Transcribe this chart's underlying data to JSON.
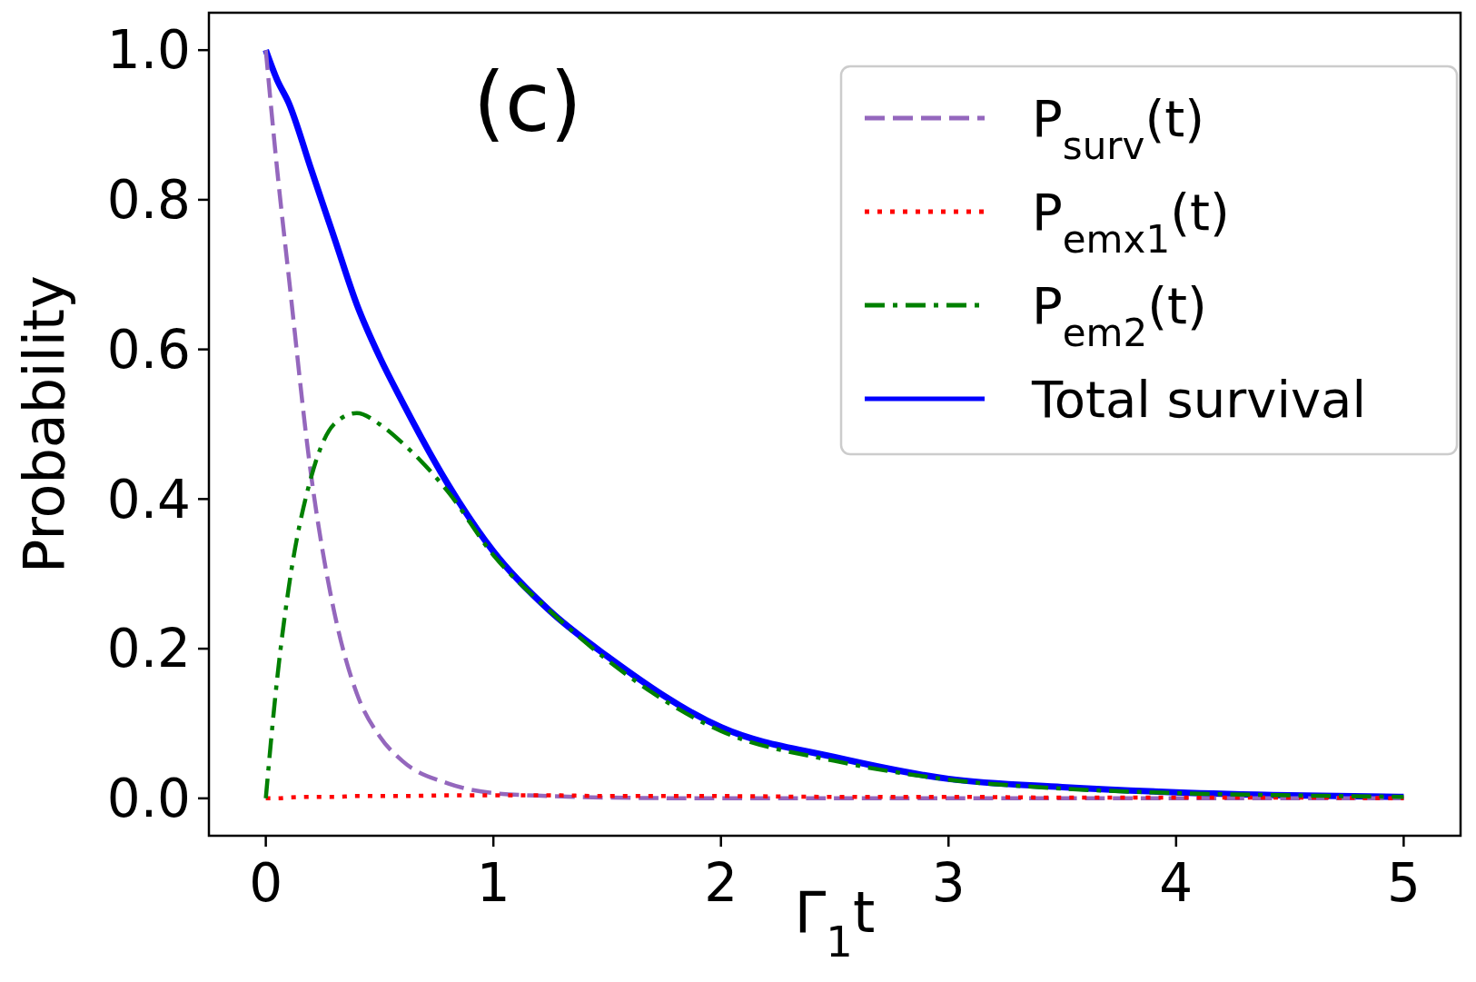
{
  "chart_data": {
    "type": "line",
    "xlabel": "Γ$_{1}$t",
    "ylabel": "Probability",
    "annotations": [
      "(c)"
    ],
    "x": [
      0,
      0.05,
      0.1,
      0.2,
      0.3,
      0.4,
      0.5,
      0.6,
      0.8,
      1,
      1.25,
      1.5,
      2,
      2.5,
      3,
      3.5,
      4,
      4.5,
      5
    ],
    "xlim": [
      -0.25,
      5.25
    ],
    "ylim": [
      -0.05,
      1.05
    ],
    "xticks": [
      0,
      1,
      2,
      3,
      4,
      5
    ],
    "yticks": [
      {
        "value": 0,
        "label": "0.0"
      },
      {
        "value": 0.2,
        "label": "0.2"
      },
      {
        "value": 0.4,
        "label": "0.4"
      },
      {
        "value": 0.6,
        "label": "0.6"
      },
      {
        "value": 0.8,
        "label": "0.8"
      },
      {
        "value": 1,
        "label": "1.0"
      }
    ],
    "legend": "top right",
    "grid": false,
    "series": [
      {
        "name": "P$_{surv}$(t)",
        "color": "#9467bd",
        "line_style": "dashed",
        "values": [
          1,
          0.84,
          0.7,
          0.43,
          0.25,
          0.14,
          0.083,
          0.05,
          0.02,
          0.007,
          0.003,
          0.001,
          0,
          0,
          0,
          0,
          0,
          0,
          0
        ]
      },
      {
        "name": "P$_{emx1}$(t)",
        "color": "#ff0000",
        "line_style": "dotted",
        "values": [
          0,
          0,
          0.001,
          0.002,
          0.002,
          0.003,
          0.003,
          0.003,
          0.004,
          0.004,
          0.004,
          0.003,
          0.003,
          0.002,
          0.002,
          0.001,
          0.001,
          0.001,
          0
        ]
      },
      {
        "name": "P$_{em2}$(t)",
        "color": "#008000",
        "line_style": "dashdot",
        "values": [
          0,
          0.16,
          0.28,
          0.43,
          0.5,
          0.515,
          0.5,
          0.475,
          0.41,
          0.325,
          0.25,
          0.185,
          0.09,
          0.05,
          0.025,
          0.013,
          0.007,
          0.004,
          0.002
        ]
      },
      {
        "name": "Total survival",
        "color": "#0000ff",
        "line_style": "solid",
        "values": [
          1,
          0.96,
          0.93,
          0.84,
          0.75,
          0.66,
          0.59,
          0.53,
          0.42,
          0.33,
          0.25,
          0.19,
          0.095,
          0.055,
          0.026,
          0.015,
          0.008,
          0.004,
          0.002
        ]
      }
    ]
  }
}
